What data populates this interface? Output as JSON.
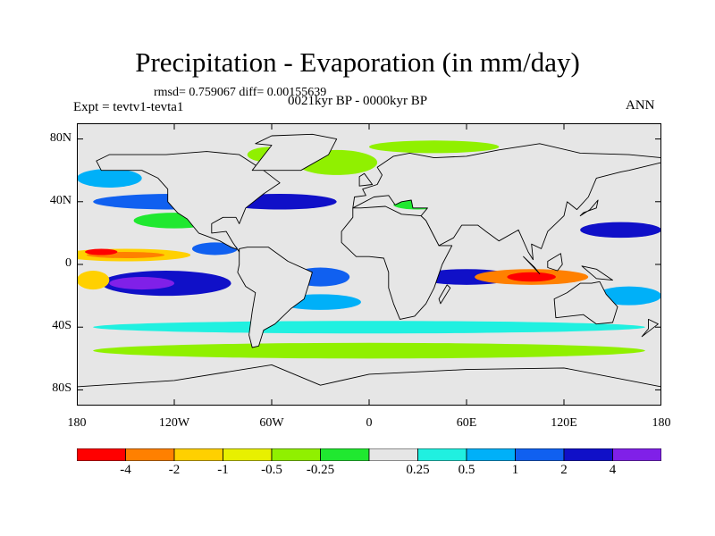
{
  "title": "Precipitation - Evaporation (in mm/day)",
  "stats": "rmsd= 0.759067 diff= 0.00155639",
  "period": "0021kyr BP - 0000kyr BP",
  "experiment": "Expt = tevtv1-tevta1",
  "season": "ANN",
  "map": {
    "projection": "cylindrical-equidistant",
    "lon_range": [
      -180,
      180
    ],
    "lat_range": [
      -90,
      90
    ],
    "lat_ticks": [
      {
        "value": 80,
        "label": "80N"
      },
      {
        "value": 40,
        "label": "40N"
      },
      {
        "value": 0,
        "label": "0"
      },
      {
        "value": -40,
        "label": "40S"
      },
      {
        "value": -80,
        "label": "80S"
      }
    ],
    "lon_ticks": [
      {
        "value": -180,
        "label": "180"
      },
      {
        "value": -120,
        "label": "120W"
      },
      {
        "value": -60,
        "label": "60W"
      },
      {
        "value": 0,
        "label": "0"
      },
      {
        "value": 60,
        "label": "60E"
      },
      {
        "value": 120,
        "label": "120E"
      },
      {
        "value": 180,
        "label": "180"
      }
    ]
  },
  "colorbar": {
    "colors": [
      "#ff0000",
      "#ff8000",
      "#ffd000",
      "#e8f000",
      "#90f000",
      "#20e830",
      "#e6e6e6",
      "#20f0e0",
      "#00b0f8",
      "#1060f0",
      "#1010c8",
      "#8020e8"
    ],
    "labels": [
      "-4",
      "-2",
      "-1",
      "-0.5",
      "-0.25",
      "0.25",
      "0.5",
      "1",
      "2",
      "4"
    ]
  },
  "ocean_patches": [
    {
      "lon": -150,
      "lat": 6,
      "rx": 40,
      "ry": 4,
      "c": 2
    },
    {
      "lon": -150,
      "lat": 6,
      "rx": 24,
      "ry": 2,
      "c": 1
    },
    {
      "lon": -165,
      "lat": 8,
      "rx": 10,
      "ry": 2,
      "c": 0
    },
    {
      "lon": -125,
      "lat": -12,
      "rx": 40,
      "ry": 8,
      "c": 10
    },
    {
      "lon": -140,
      "lat": -12,
      "rx": 20,
      "ry": 4,
      "c": 11
    },
    {
      "lon": -170,
      "lat": -10,
      "rx": 10,
      "ry": 6,
      "c": 2
    },
    {
      "lon": -120,
      "lat": 40,
      "rx": 50,
      "ry": 5,
      "c": 9
    },
    {
      "lon": -55,
      "lat": 40,
      "rx": 35,
      "ry": 5,
      "c": 10
    },
    {
      "lon": -30,
      "lat": -8,
      "rx": 18,
      "ry": 6,
      "c": 9
    },
    {
      "lon": -30,
      "lat": -24,
      "rx": 25,
      "ry": 5,
      "c": 8
    },
    {
      "lon": -95,
      "lat": 10,
      "rx": 14,
      "ry": 4,
      "c": 9
    },
    {
      "lon": 60,
      "lat": -8,
      "rx": 30,
      "ry": 5,
      "c": 10
    },
    {
      "lon": 100,
      "lat": -8,
      "rx": 35,
      "ry": 5,
      "c": 1
    },
    {
      "lon": 100,
      "lat": -8,
      "rx": 15,
      "ry": 3,
      "c": 0
    },
    {
      "lon": 155,
      "lat": 22,
      "rx": 25,
      "ry": 5,
      "c": 10
    },
    {
      "lon": 160,
      "lat": -20,
      "rx": 20,
      "ry": 6,
      "c": 8
    },
    {
      "lon": -20,
      "lat": 65,
      "rx": 25,
      "ry": 8,
      "c": 4
    },
    {
      "lon": -60,
      "lat": 70,
      "rx": 15,
      "ry": 5,
      "c": 4
    },
    {
      "lon": 40,
      "lat": 75,
      "rx": 40,
      "ry": 4,
      "c": 4
    },
    {
      "lon": 0,
      "lat": -55,
      "rx": 170,
      "ry": 5,
      "c": 4
    },
    {
      "lon": 0,
      "lat": -40,
      "rx": 170,
      "ry": 4,
      "c": 7
    },
    {
      "lon": -120,
      "lat": 28,
      "rx": 25,
      "ry": 5,
      "c": 5
    },
    {
      "lon": 30,
      "lat": 38,
      "rx": 15,
      "ry": 3,
      "c": 5
    },
    {
      "lon": -160,
      "lat": 55,
      "rx": 20,
      "ry": 6,
      "c": 8
    }
  ],
  "land": [
    [
      [
        -168,
        66
      ],
      [
        -160,
        70
      ],
      [
        -140,
        70
      ],
      [
        -125,
        70
      ],
      [
        -100,
        72
      ],
      [
        -80,
        70
      ],
      [
        -65,
        60
      ],
      [
        -55,
        52
      ],
      [
        -65,
        45
      ],
      [
        -76,
        36
      ],
      [
        -80,
        26
      ],
      [
        -82,
        30
      ],
      [
        -90,
        30
      ],
      [
        -97,
        26
      ],
      [
        -97,
        20
      ],
      [
        -88,
        21
      ],
      [
        -84,
        14
      ],
      [
        -80,
        8
      ],
      [
        -77,
        8
      ],
      [
        -85,
        11
      ],
      [
        -92,
        15
      ],
      [
        -105,
        20
      ],
      [
        -112,
        29
      ],
      [
        -118,
        33
      ],
      [
        -124,
        40
      ],
      [
        -124,
        48
      ],
      [
        -130,
        55
      ],
      [
        -140,
        60
      ],
      [
        -152,
        60
      ],
      [
        -165,
        60
      ]
    ],
    [
      [
        -80,
        10
      ],
      [
        -75,
        11
      ],
      [
        -62,
        11
      ],
      [
        -50,
        2
      ],
      [
        -35,
        -5
      ],
      [
        -37,
        -12
      ],
      [
        -40,
        -22
      ],
      [
        -48,
        -28
      ],
      [
        -55,
        -35
      ],
      [
        -58,
        -38
      ],
      [
        -65,
        -42
      ],
      [
        -68,
        -52
      ],
      [
        -72,
        -53
      ],
      [
        -74,
        -45
      ],
      [
        -72,
        -30
      ],
      [
        -70,
        -18
      ],
      [
        -76,
        -14
      ],
      [
        -81,
        -5
      ],
      [
        -80,
        0
      ]
    ],
    [
      [
        -72,
        60
      ],
      [
        -55,
        60
      ],
      [
        -42,
        60
      ],
      [
        -25,
        70
      ],
      [
        -20,
        80
      ],
      [
        -35,
        83
      ],
      [
        -60,
        82
      ],
      [
        -70,
        77
      ],
      [
        -60,
        76
      ]
    ],
    [
      [
        -10,
        36
      ],
      [
        -5,
        36
      ],
      [
        10,
        37
      ],
      [
        20,
        32
      ],
      [
        32,
        31
      ],
      [
        35,
        28
      ],
      [
        43,
        12
      ],
      [
        51,
        12
      ],
      [
        45,
        0
      ],
      [
        40,
        -15
      ],
      [
        35,
        -25
      ],
      [
        28,
        -33
      ],
      [
        19,
        -35
      ],
      [
        15,
        -25
      ],
      [
        12,
        -15
      ],
      [
        12,
        -5
      ],
      [
        9,
        4
      ],
      [
        0,
        5
      ],
      [
        -8,
        5
      ],
      [
        -17,
        14
      ],
      [
        -17,
        21
      ],
      [
        -10,
        30
      ]
    ],
    [
      [
        -10,
        36
      ],
      [
        -9,
        43
      ],
      [
        -2,
        44
      ],
      [
        -4,
        48
      ],
      [
        5,
        51
      ],
      [
        8,
        57
      ],
      [
        5,
        62
      ],
      [
        15,
        69
      ],
      [
        25,
        71
      ],
      [
        40,
        68
      ],
      [
        60,
        69
      ],
      [
        80,
        73
      ],
      [
        105,
        77
      ],
      [
        130,
        71
      ],
      [
        160,
        70
      ],
      [
        180,
        68
      ],
      [
        180,
        65
      ],
      [
        160,
        60
      ],
      [
        155,
        59
      ],
      [
        140,
        55
      ],
      [
        135,
        43
      ],
      [
        128,
        35
      ],
      [
        122,
        40
      ],
      [
        120,
        31
      ],
      [
        110,
        21
      ],
      [
        106,
        10
      ],
      [
        100,
        13
      ],
      [
        101,
        3
      ],
      [
        98,
        8
      ],
      [
        92,
        22
      ],
      [
        80,
        15
      ],
      [
        72,
        21
      ],
      [
        67,
        25
      ],
      [
        57,
        25
      ],
      [
        52,
        17
      ],
      [
        43,
        12
      ],
      [
        35,
        28
      ],
      [
        32,
        31
      ],
      [
        36,
        36
      ],
      [
        27,
        36
      ],
      [
        26,
        41
      ],
      [
        20,
        40
      ],
      [
        16,
        38
      ],
      [
        12,
        44
      ],
      [
        3,
        43
      ]
    ],
    [
      [
        114,
        -22
      ],
      [
        122,
        -18
      ],
      [
        130,
        -12
      ],
      [
        137,
        -12
      ],
      [
        142,
        -11
      ],
      [
        146,
        -19
      ],
      [
        153,
        -27
      ],
      [
        150,
        -37
      ],
      [
        140,
        -38
      ],
      [
        132,
        -32
      ],
      [
        115,
        -34
      ]
    ],
    [
      [
        95,
        5
      ],
      [
        105,
        -6
      ],
      [
        102,
        -2
      ]
    ],
    [
      [
        110,
        2
      ],
      [
        118,
        7
      ],
      [
        119,
        0
      ],
      [
        116,
        -4
      ],
      [
        110,
        -2
      ]
    ],
    [
      [
        131,
        -1
      ],
      [
        140,
        -3
      ],
      [
        150,
        -10
      ],
      [
        140,
        -9
      ]
    ],
    [
      [
        130,
        31
      ],
      [
        136,
        35
      ],
      [
        141,
        41
      ],
      [
        140,
        36
      ],
      [
        132,
        33
      ]
    ],
    [
      [
        -6,
        50
      ],
      [
        2,
        51
      ],
      [
        -3,
        58
      ],
      [
        -6,
        56
      ]
    ],
    [
      [
        44,
        -25
      ],
      [
        50,
        -15
      ],
      [
        48,
        -13
      ],
      [
        43,
        -22
      ]
    ],
    [
      [
        172,
        -35
      ],
      [
        178,
        -38
      ],
      [
        168,
        -46
      ],
      [
        172,
        -41
      ]
    ],
    [
      [
        -180,
        -78
      ],
      [
        -120,
        -74
      ],
      [
        -60,
        -64
      ],
      [
        -30,
        -77
      ],
      [
        0,
        -70
      ],
      [
        60,
        -67
      ],
      [
        120,
        -66
      ],
      [
        180,
        -78
      ],
      [
        180,
        -90
      ],
      [
        -180,
        -90
      ]
    ]
  ]
}
